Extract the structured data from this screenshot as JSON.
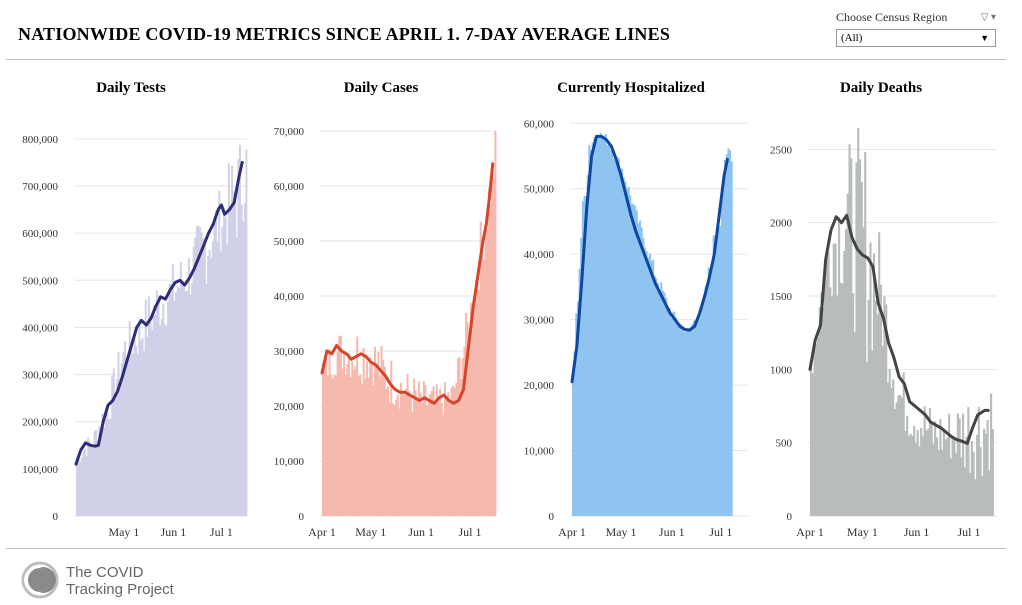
{
  "header": {
    "title": "NATIONWIDE COVID-19 METRICS SINCE APRIL 1. 7-DAY AVERAGE LINES",
    "filter_label": "Choose Census Region",
    "filter_value": "(All)"
  },
  "footer": {
    "logo_line1": "The COVID",
    "logo_line2": "Tracking Project"
  },
  "chart_data": [
    {
      "type": "bar",
      "title": "Daily Tests",
      "bar_color": "#d0d0e8",
      "line_color": "#2e2d78",
      "ylim": [
        0,
        840000
      ],
      "yticks": [
        0,
        100000,
        200000,
        300000,
        400000,
        500000,
        600000,
        700000,
        800000
      ],
      "ytick_labels": [
        "0",
        "100,000",
        "200,000",
        "300,000",
        "400,000",
        "500,000",
        "600,000",
        "700,000",
        "800,000"
      ],
      "xticks": [
        {
          "label": "May 1",
          "day": 30
        },
        {
          "label": "Jun 1",
          "day": 61
        },
        {
          "label": "Jul 1",
          "day": 91
        }
      ],
      "day_range": [
        0,
        107
      ],
      "avg_points": [
        [
          0,
          110000
        ],
        [
          3,
          140000
        ],
        [
          6,
          155000
        ],
        [
          9,
          150000
        ],
        [
          12,
          148000
        ],
        [
          14,
          150000
        ],
        [
          17,
          200000
        ],
        [
          20,
          235000
        ],
        [
          23,
          245000
        ],
        [
          26,
          265000
        ],
        [
          29,
          295000
        ],
        [
          32,
          330000
        ],
        [
          35,
          365000
        ],
        [
          38,
          400000
        ],
        [
          41,
          415000
        ],
        [
          44,
          405000
        ],
        [
          47,
          420000
        ],
        [
          50,
          445000
        ],
        [
          53,
          465000
        ],
        [
          56,
          460000
        ],
        [
          59,
          480000
        ],
        [
          62,
          495000
        ],
        [
          65,
          500000
        ],
        [
          68,
          490000
        ],
        [
          71,
          505000
        ],
        [
          74,
          525000
        ],
        [
          77,
          550000
        ],
        [
          80,
          575000
        ],
        [
          83,
          600000
        ],
        [
          86,
          620000
        ],
        [
          89,
          650000
        ],
        [
          91,
          660000
        ],
        [
          93,
          640000
        ],
        [
          96,
          650000
        ],
        [
          99,
          665000
        ],
        [
          102,
          720000
        ],
        [
          104,
          750000
        ]
      ],
      "bars_low": [
        [
          0,
          100000
        ],
        [
          10,
          140000
        ],
        [
          20,
          190000
        ],
        [
          30,
          310000
        ],
        [
          40,
          330000
        ],
        [
          50,
          380000
        ],
        [
          60,
          410000
        ],
        [
          70,
          450000
        ],
        [
          80,
          480000
        ],
        [
          90,
          560000
        ],
        [
          100,
          560000
        ],
        [
          106,
          650000
        ]
      ],
      "bars_high": [
        [
          0,
          150000
        ],
        [
          10,
          180000
        ],
        [
          20,
          280000
        ],
        [
          30,
          400000
        ],
        [
          40,
          450000
        ],
        [
          50,
          510000
        ],
        [
          60,
          540000
        ],
        [
          70,
          580000
        ],
        [
          80,
          660000
        ],
        [
          90,
          700000
        ],
        [
          100,
          800000
        ],
        [
          106,
          830000
        ]
      ]
    },
    {
      "type": "bar",
      "title": "Daily Cases",
      "bar_color": "#f6b9ad",
      "line_color": "#d6442a",
      "ylim": [
        0,
        72000
      ],
      "yticks": [
        0,
        10000,
        20000,
        30000,
        40000,
        50000,
        60000,
        70000
      ],
      "ytick_labels": [
        "0",
        "10,000",
        "20,000",
        "30,000",
        "40,000",
        "50,000",
        "60,000",
        "70,000"
      ],
      "xticks": [
        {
          "label": "Apr 1",
          "day": 0
        },
        {
          "label": "May 1",
          "day": 30
        },
        {
          "label": "Jun 1",
          "day": 61
        },
        {
          "label": "Jul 1",
          "day": 91
        }
      ],
      "day_range": [
        0,
        107
      ],
      "avg_points": [
        [
          0,
          26000
        ],
        [
          3,
          30000
        ],
        [
          6,
          29500
        ],
        [
          9,
          31000
        ],
        [
          12,
          30000
        ],
        [
          15,
          29500
        ],
        [
          18,
          28500
        ],
        [
          21,
          29000
        ],
        [
          24,
          29500
        ],
        [
          27,
          29000
        ],
        [
          30,
          28000
        ],
        [
          33,
          27500
        ],
        [
          36,
          26500
        ],
        [
          39,
          25500
        ],
        [
          42,
          24000
        ],
        [
          45,
          23000
        ],
        [
          48,
          22500
        ],
        [
          51,
          22500
        ],
        [
          54,
          22000
        ],
        [
          57,
          21500
        ],
        [
          60,
          21000
        ],
        [
          63,
          21500
        ],
        [
          66,
          21000
        ],
        [
          69,
          20500
        ],
        [
          72,
          21500
        ],
        [
          75,
          22000
        ],
        [
          78,
          21000
        ],
        [
          81,
          20500
        ],
        [
          84,
          21000
        ],
        [
          87,
          23000
        ],
        [
          89,
          28000
        ],
        [
          91,
          33000
        ],
        [
          93,
          38000
        ],
        [
          95,
          42000
        ],
        [
          97,
          46000
        ],
        [
          99,
          50000
        ],
        [
          101,
          53000
        ],
        [
          103,
          58000
        ],
        [
          105,
          64000
        ]
      ],
      "bars_low": [
        [
          0,
          23000
        ],
        [
          10,
          26000
        ],
        [
          20,
          24000
        ],
        [
          30,
          24000
        ],
        [
          40,
          20000
        ],
        [
          50,
          19000
        ],
        [
          60,
          17000
        ],
        [
          70,
          17000
        ],
        [
          80,
          19000
        ],
        [
          90,
          30000
        ],
        [
          100,
          48000
        ],
        [
          106,
          60000
        ]
      ],
      "bars_high": [
        [
          0,
          30000
        ],
        [
          10,
          34000
        ],
        [
          20,
          35000
        ],
        [
          30,
          34000
        ],
        [
          40,
          30000
        ],
        [
          50,
          27000
        ],
        [
          60,
          25000
        ],
        [
          70,
          24000
        ],
        [
          80,
          25000
        ],
        [
          90,
          40000
        ],
        [
          100,
          60000
        ],
        [
          106,
          71000
        ]
      ]
    },
    {
      "type": "bar",
      "title": "Currently Hospitalized",
      "bar_color": "#8ec4ef",
      "line_color": "#0d47a1",
      "ylim": [
        0,
        60500
      ],
      "yticks": [
        0,
        10000,
        20000,
        30000,
        40000,
        50000,
        60000
      ],
      "ytick_labels": [
        "0",
        "10,000",
        "20,000",
        "30,000",
        "40,000",
        "50,000",
        "60,000"
      ],
      "xticks": [
        {
          "label": "Apr 1",
          "day": 0
        },
        {
          "label": "May 1",
          "day": 30
        },
        {
          "label": "Jun 1",
          "day": 61
        },
        {
          "label": "Jul 1",
          "day": 91
        }
      ],
      "day_range": [
        0,
        107
      ],
      "avg_points": [
        [
          0,
          20500
        ],
        [
          3,
          26000
        ],
        [
          6,
          36000
        ],
        [
          9,
          47000
        ],
        [
          12,
          55000
        ],
        [
          15,
          58000
        ],
        [
          18,
          58000
        ],
        [
          21,
          57500
        ],
        [
          24,
          56500
        ],
        [
          27,
          54500
        ],
        [
          30,
          52000
        ],
        [
          33,
          49000
        ],
        [
          36,
          46000
        ],
        [
          39,
          43500
        ],
        [
          42,
          41500
        ],
        [
          45,
          39500
        ],
        [
          48,
          37500
        ],
        [
          51,
          35500
        ],
        [
          54,
          34000
        ],
        [
          57,
          32500
        ],
        [
          60,
          31000
        ],
        [
          63,
          30000
        ],
        [
          66,
          29000
        ],
        [
          69,
          28500
        ],
        [
          72,
          28400
        ],
        [
          75,
          29000
        ],
        [
          78,
          31000
        ],
        [
          81,
          33500
        ],
        [
          84,
          36500
        ],
        [
          87,
          40000
        ],
        [
          90,
          46000
        ],
        [
          93,
          52000
        ],
        [
          95,
          54500
        ]
      ],
      "bars_low": [
        [
          0,
          20000
        ],
        [
          5,
          40000
        ],
        [
          10,
          54000
        ],
        [
          15,
          58000
        ],
        [
          20,
          57000
        ],
        [
          30,
          52000
        ],
        [
          40,
          44000
        ],
        [
          50,
          36000
        ],
        [
          60,
          30000
        ],
        [
          70,
          27500
        ],
        [
          80,
          31000
        ],
        [
          90,
          44000
        ],
        [
          95,
          54000
        ]
      ],
      "bars_high": [
        [
          0,
          22000
        ],
        [
          5,
          46000
        ],
        [
          10,
          59500
        ],
        [
          15,
          59000
        ],
        [
          20,
          58500
        ],
        [
          30,
          54000
        ],
        [
          40,
          46000
        ],
        [
          50,
          38500
        ],
        [
          60,
          32000
        ],
        [
          70,
          28500
        ],
        [
          80,
          33500
        ],
        [
          90,
          50000
        ],
        [
          95,
          57500
        ]
      ]
    },
    {
      "type": "bar",
      "title": "Daily Deaths",
      "bar_color": "#b8bcbc",
      "line_color": "#444444",
      "ylim": [
        0,
        2700
      ],
      "yticks": [
        0,
        500,
        1000,
        1500,
        2000,
        2500
      ],
      "ytick_labels": [
        "0",
        "500",
        "1000",
        "1500",
        "2000",
        "2500"
      ],
      "xticks": [
        {
          "label": "Apr 1",
          "day": 0
        },
        {
          "label": "May 1",
          "day": 30
        },
        {
          "label": "Jun 1",
          "day": 61
        },
        {
          "label": "Jul 1",
          "day": 91
        }
      ],
      "day_range": [
        0,
        107
      ],
      "avg_points": [
        [
          0,
          1000
        ],
        [
          3,
          1200
        ],
        [
          6,
          1300
        ],
        [
          9,
          1750
        ],
        [
          12,
          1950
        ],
        [
          15,
          2040
        ],
        [
          18,
          2000
        ],
        [
          21,
          2050
        ],
        [
          24,
          1900
        ],
        [
          27,
          1820
        ],
        [
          30,
          1780
        ],
        [
          33,
          1760
        ],
        [
          36,
          1700
        ],
        [
          39,
          1450
        ],
        [
          42,
          1350
        ],
        [
          45,
          1180
        ],
        [
          48,
          1080
        ],
        [
          51,
          950
        ],
        [
          54,
          900
        ],
        [
          57,
          780
        ],
        [
          60,
          750
        ],
        [
          63,
          720
        ],
        [
          66,
          690
        ],
        [
          69,
          640
        ],
        [
          72,
          620
        ],
        [
          75,
          600
        ],
        [
          78,
          570
        ],
        [
          81,
          540
        ],
        [
          84,
          520
        ],
        [
          87,
          510
        ],
        [
          90,
          495
        ],
        [
          93,
          600
        ],
        [
          96,
          690
        ],
        [
          100,
          720
        ],
        [
          102,
          720
        ]
      ],
      "bars_low": [
        [
          0,
          850
        ],
        [
          10,
          1500
        ],
        [
          20,
          1500
        ],
        [
          30,
          1000
        ],
        [
          40,
          1100
        ],
        [
          50,
          600
        ],
        [
          60,
          450
        ],
        [
          70,
          350
        ],
        [
          80,
          350
        ],
        [
          90,
          250
        ],
        [
          100,
          250
        ],
        [
          102,
          300
        ]
      ],
      "bars_high": [
        [
          0,
          1200
        ],
        [
          10,
          2100
        ],
        [
          20,
          2550
        ],
        [
          30,
          2700
        ],
        [
          40,
          1900
        ],
        [
          50,
          1050
        ],
        [
          60,
          900
        ],
        [
          70,
          750
        ],
        [
          80,
          750
        ],
        [
          90,
          900
        ],
        [
          100,
          950
        ],
        [
          102,
          980
        ]
      ]
    }
  ]
}
